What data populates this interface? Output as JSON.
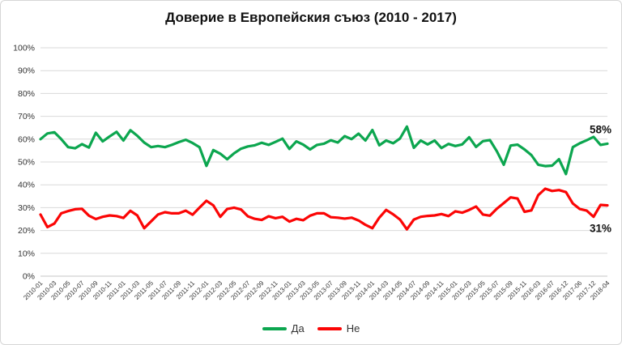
{
  "chart_data": {
    "type": "line",
    "title": "Доверие в Европейския съюз (2010 - 2017)",
    "ylim": [
      0,
      100
    ],
    "grid": "horizontal",
    "legend_position": "bottom-center",
    "y_tick_labels": [
      "0%",
      "10%",
      "20%",
      "30%",
      "40%",
      "50%",
      "60%",
      "70%",
      "80%",
      "90%",
      "100%"
    ],
    "x_labels": [
      "2010-01",
      "2010-03",
      "2010-05",
      "2010-07",
      "2010-09",
      "2010-11",
      "2011-01",
      "2011-03",
      "2011-05",
      "2011-07",
      "2011-09",
      "2011-11",
      "2012-01",
      "2012-03",
      "2012-05",
      "2012-07",
      "2012-09",
      "2012-11",
      "2013-01",
      "2013-03",
      "2013-05",
      "2013-07",
      "2013-09",
      "2013-11",
      "2014-01",
      "2014-03",
      "2014-05",
      "2014-07",
      "2014-09",
      "2014-11",
      "2015-01",
      "2015-03",
      "2015-05",
      "2015-07",
      "2015-09",
      "2015-11",
      "2016-03",
      "2016-07",
      "2016-12",
      "2017-06",
      "2017-12",
      "2018-04"
    ],
    "label_interval": 2,
    "series": [
      {
        "name": "Да",
        "color": "#0ca64f",
        "values": [
          60,
          62.5,
          63,
          60,
          56.5,
          56,
          57.8,
          56.3,
          62.8,
          59,
          61.2,
          63.2,
          59.4,
          63.9,
          61.5,
          58.5,
          56.5,
          57,
          56.5,
          57.5,
          58.7,
          59.7,
          58.3,
          56.5,
          48.3,
          55.2,
          53.6,
          51.2,
          53.8,
          55.8,
          56.8,
          57.3,
          58.4,
          57.5,
          58.8,
          60.2,
          55.7,
          59,
          57.6,
          55.5,
          57.5,
          58,
          59.5,
          58.5,
          61.3,
          60,
          62.4,
          59.4,
          64,
          57.3,
          59.4,
          58.2,
          60.3,
          65.5,
          56.2,
          59.4,
          57.7,
          59.4,
          56.1,
          57.9,
          57,
          57.7,
          60.8,
          56.6,
          59.1,
          59.6,
          54.7,
          48.8,
          57.2,
          57.6,
          55.5,
          53,
          48.8,
          48.2,
          48.4,
          51.2,
          44.7,
          56.5,
          58.2,
          59.5,
          61,
          57.5,
          58
        ]
      },
      {
        "name": "Не",
        "color": "#fb0505",
        "values": [
          27,
          21.5,
          23,
          27.5,
          28.5,
          29.3,
          29.5,
          26.5,
          25,
          26,
          26.6,
          26.3,
          25.5,
          28.6,
          26.6,
          21,
          24,
          27,
          28,
          27.5,
          27.5,
          28.7,
          26.9,
          30,
          33,
          31,
          26,
          29.4,
          30,
          29.2,
          26.2,
          25.1,
          24.6,
          26.2,
          25.4,
          26,
          23.9,
          25.1,
          24.5,
          26.5,
          27.5,
          27.5,
          25.8,
          25.6,
          25.2,
          25.6,
          24.4,
          22.5,
          21,
          25.6,
          29,
          27.1,
          24.8,
          20.5,
          24.8,
          26,
          26.4,
          26.6,
          27.2,
          26.3,
          28.4,
          27.8,
          29,
          30.5,
          27,
          26.5,
          29.5,
          32,
          34.5,
          34,
          28.2,
          28.8,
          35.5,
          38.3,
          37.3,
          37.7,
          36.8,
          31.8,
          29.4,
          28.7,
          26,
          31.2,
          31
        ]
      }
    ],
    "annotations": [
      {
        "series": 0,
        "text": "58%",
        "placement": "above"
      },
      {
        "series": 1,
        "text": "31%",
        "placement": "below"
      }
    ],
    "colors": {
      "gridline": "#d9d9d9",
      "axis_line": "#c6c6c6",
      "tick_text": "#333333",
      "title_text": "#111111"
    }
  }
}
